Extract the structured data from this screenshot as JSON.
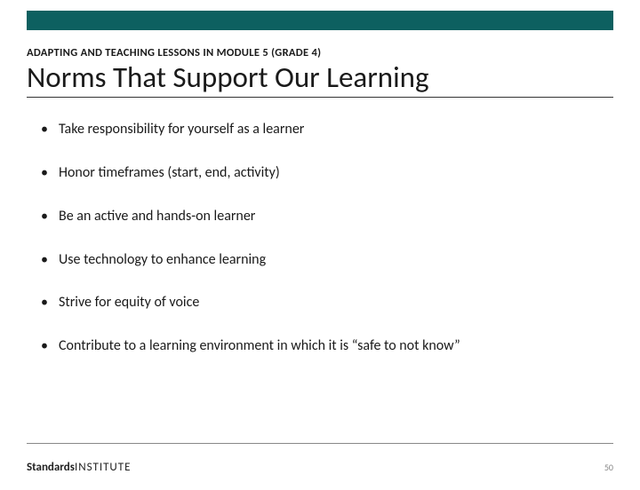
{
  "colors": {
    "topbar": "#0d6060",
    "text": "#1a1a1a",
    "divider": "#888888",
    "background": "#ffffff"
  },
  "typography": {
    "kicker_fontsize": 12.5,
    "title_fontsize": 33,
    "bullet_fontsize": 16,
    "logo_fontsize": 13,
    "pagenum_fontsize": 10
  },
  "kicker": "ADAPTING AND TEACHING LESSONS IN MODULE 5 (GRADE 4)",
  "title": "Norms That Support Our Learning",
  "bullets": [
    "Take responsibility for yourself as a learner",
    "Honor timeframes (start, end, activity)",
    "Be an active and hands-on learner",
    "Use technology to enhance learning",
    "Strive for equity of voice",
    "Contribute to a learning environment in which it is “safe to not know”"
  ],
  "logo": {
    "bold": "Standards",
    "light": "INSTITUTE"
  },
  "page_number": "50"
}
